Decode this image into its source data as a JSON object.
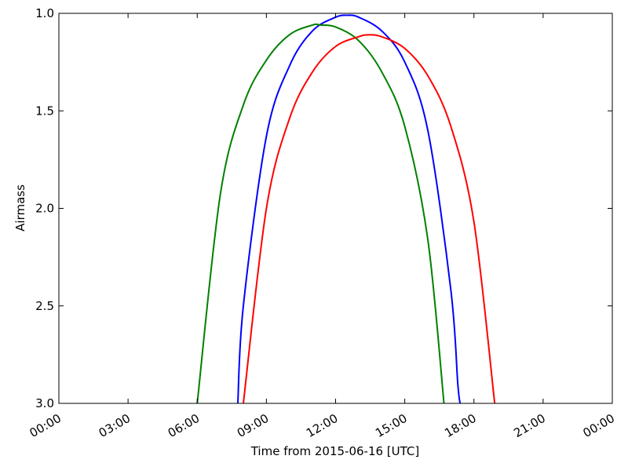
{
  "chart_data": {
    "type": "line",
    "title": "",
    "xlabel": "Time from 2015-06-16 [UTC]",
    "ylabel": "Airmass",
    "xlim_hours": [
      0,
      24
    ],
    "ylim": [
      3.0,
      1.0
    ],
    "y_inverted": true,
    "grid": false,
    "x_tick_labels": [
      "00:00",
      "03:00",
      "06:00",
      "09:00",
      "12:00",
      "15:00",
      "18:00",
      "21:00",
      "00:00"
    ],
    "x_tick_hours": [
      0,
      3,
      6,
      9,
      12,
      15,
      18,
      21,
      24
    ],
    "y_ticks": [
      1.0,
      1.5,
      2.0,
      2.5,
      3.0
    ],
    "y_tick_labels": [
      "1.0",
      "1.5",
      "2.0",
      "2.5",
      "3.0"
    ],
    "series": [
      {
        "color": "#0000ff",
        "x_hours": [
          7.76,
          8,
          9,
          10,
          11,
          12,
          12.53,
          13,
          14,
          15,
          16,
          17,
          17.3,
          17.4
        ],
        "airmass": [
          3.0,
          2.5,
          1.63,
          1.27,
          1.09,
          1.02,
          1.01,
          1.02,
          1.09,
          1.25,
          1.6,
          2.42,
          2.9,
          3.0
        ]
      },
      {
        "color": "#008000",
        "x_hours": [
          6.0,
          7,
          8,
          9,
          10,
          11,
          11.34,
          12,
          13,
          14,
          15,
          16,
          16.7
        ],
        "airmass": [
          3.0,
          1.93,
          1.47,
          1.24,
          1.11,
          1.06,
          1.06,
          1.07,
          1.14,
          1.3,
          1.58,
          2.16,
          3.0
        ]
      },
      {
        "color": "#ff0000",
        "x_hours": [
          8.0,
          9,
          10,
          11,
          12,
          13,
          13.45,
          14,
          15,
          16,
          17,
          18,
          18.9
        ],
        "airmass": [
          3.0,
          2.0,
          1.54,
          1.3,
          1.17,
          1.12,
          1.11,
          1.12,
          1.18,
          1.32,
          1.58,
          2.07,
          3.0
        ]
      }
    ]
  }
}
